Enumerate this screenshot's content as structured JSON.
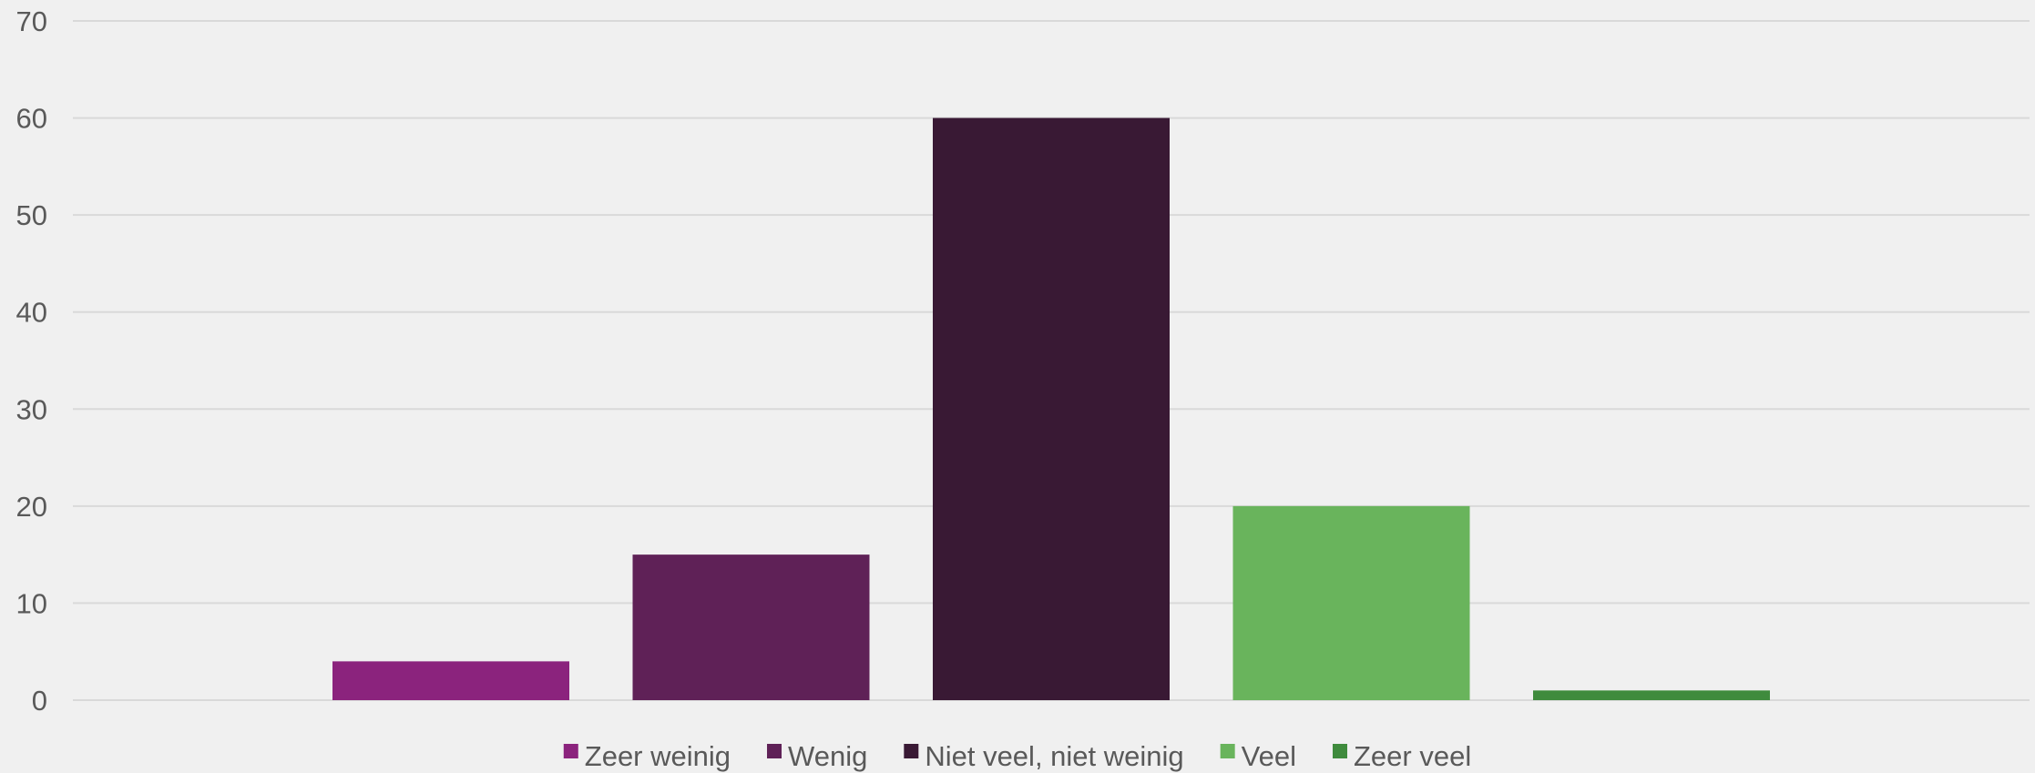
{
  "chart_data": {
    "type": "bar",
    "title": "",
    "xlabel": "",
    "ylabel": "",
    "ylim": [
      0,
      70
    ],
    "yticks": [
      0,
      10,
      20,
      30,
      40,
      50,
      60,
      70
    ],
    "grid": true,
    "legend_position": "bottom",
    "categories": [
      "Zeer weinig",
      "Wenig",
      "Niet veel, niet weinig",
      "Veel",
      "Zeer veel"
    ],
    "values": [
      4,
      15,
      60,
      20,
      1
    ],
    "colors": [
      "#8b237d",
      "#5f2157",
      "#391934",
      "#69b45c",
      "#3f8b3d"
    ]
  }
}
